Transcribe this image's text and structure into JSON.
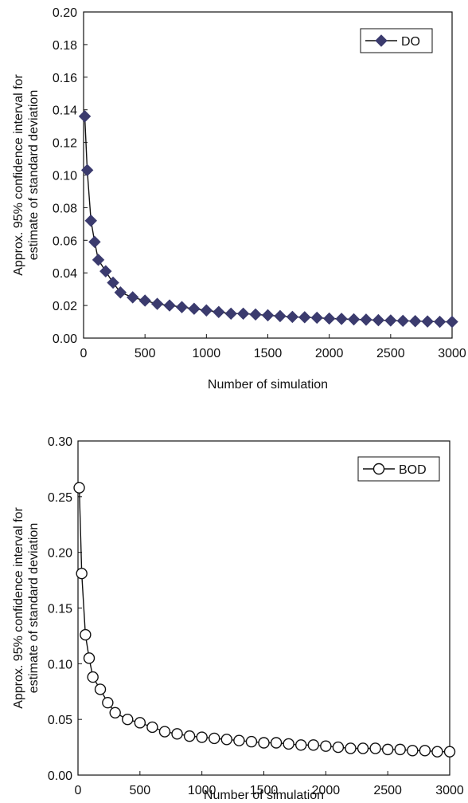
{
  "chart_data": [
    {
      "type": "line",
      "xlabel": "Number of simulation",
      "ylabel_lines": [
        "Approx. 95% confidence interval for",
        "estimate of standard deviation"
      ],
      "xlim": [
        0,
        3000
      ],
      "ylim": [
        0,
        0.2
      ],
      "xticks": [
        "0",
        "500",
        "1000",
        "1500",
        "2000",
        "2500",
        "3000"
      ],
      "yticks": [
        "0.00",
        "0.02",
        "0.04",
        "0.06",
        "0.08",
        "0.10",
        "0.12",
        "0.14",
        "0.16",
        "0.18",
        "0.20"
      ],
      "grid": false,
      "legend_position": "top-right",
      "series": [
        {
          "name": "DO",
          "marker": "diamond-filled",
          "color": "#3b3b6e",
          "x": [
            10,
            30,
            60,
            90,
            120,
            180,
            240,
            300,
            400,
            500,
            600,
            700,
            800,
            900,
            1000,
            1100,
            1200,
            1300,
            1400,
            1500,
            1600,
            1700,
            1800,
            1900,
            2000,
            2100,
            2200,
            2300,
            2400,
            2500,
            2600,
            2700,
            2800,
            2900,
            3000
          ],
          "y": [
            0.136,
            0.103,
            0.072,
            0.059,
            0.048,
            0.041,
            0.034,
            0.028,
            0.025,
            0.023,
            0.021,
            0.02,
            0.019,
            0.018,
            0.017,
            0.016,
            0.015,
            0.015,
            0.0145,
            0.014,
            0.0135,
            0.013,
            0.0128,
            0.0125,
            0.012,
            0.0118,
            0.0115,
            0.0113,
            0.011,
            0.0108,
            0.0106,
            0.0104,
            0.0102,
            0.01,
            0.01
          ]
        }
      ]
    },
    {
      "type": "line",
      "xlabel": "Number of simulation",
      "ylabel_lines": [
        "Approx. 95% confidence interval for",
        "estimate of standard deviation"
      ],
      "xlim": [
        0,
        3000
      ],
      "ylim": [
        0,
        0.3
      ],
      "xticks": [
        "0",
        "500",
        "1000",
        "1500",
        "2000",
        "2500",
        "3000"
      ],
      "yticks": [
        "0.00",
        "0.05",
        "0.10",
        "0.15",
        "0.20",
        "0.25",
        "0.30"
      ],
      "grid": false,
      "legend_position": "top-right",
      "series": [
        {
          "name": "BOD",
          "marker": "circle-open",
          "color": "#111111",
          "x": [
            10,
            30,
            60,
            90,
            120,
            180,
            240,
            300,
            400,
            500,
            600,
            700,
            800,
            900,
            1000,
            1100,
            1200,
            1300,
            1400,
            1500,
            1600,
            1700,
            1800,
            1900,
            2000,
            2100,
            2200,
            2300,
            2400,
            2500,
            2600,
            2700,
            2800,
            2900,
            3000
          ],
          "y": [
            0.258,
            0.181,
            0.126,
            0.105,
            0.088,
            0.077,
            0.065,
            0.056,
            0.05,
            0.047,
            0.043,
            0.039,
            0.037,
            0.035,
            0.034,
            0.033,
            0.032,
            0.031,
            0.03,
            0.029,
            0.029,
            0.028,
            0.027,
            0.027,
            0.026,
            0.025,
            0.024,
            0.024,
            0.024,
            0.023,
            0.023,
            0.022,
            0.022,
            0.021,
            0.021
          ]
        }
      ]
    }
  ]
}
